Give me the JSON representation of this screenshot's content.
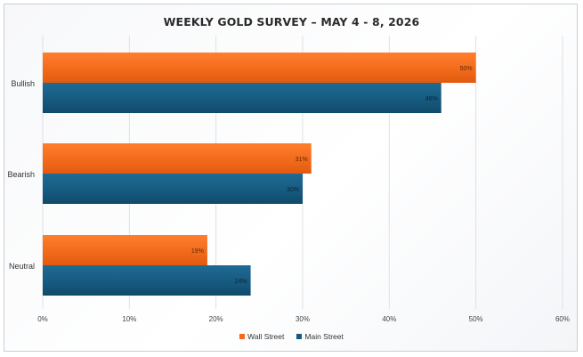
{
  "chart_data": {
    "type": "bar",
    "orientation": "horizontal",
    "title": "WEEKLY GOLD SURVEY – MAY 4 - 8, 2026",
    "categories": [
      "Bullish",
      "Bearish",
      "Neutral"
    ],
    "series": [
      {
        "name": "Wall Street",
        "color": "#f26a1b",
        "values": [
          50,
          31,
          19
        ],
        "labels": [
          "50%",
          "31%",
          "19%"
        ]
      },
      {
        "name": "Main Street",
        "color": "#175a80",
        "values": [
          46,
          30,
          24
        ],
        "labels": [
          "46%",
          "30%",
          "24%"
        ]
      }
    ],
    "xlim": [
      0,
      60
    ],
    "x_ticks": [
      0,
      10,
      20,
      30,
      40,
      50,
      60
    ],
    "x_tick_labels": [
      "0%",
      "10%",
      "20%",
      "30%",
      "40%",
      "50%",
      "60%"
    ],
    "grid": true,
    "legend_position": "bottom"
  }
}
